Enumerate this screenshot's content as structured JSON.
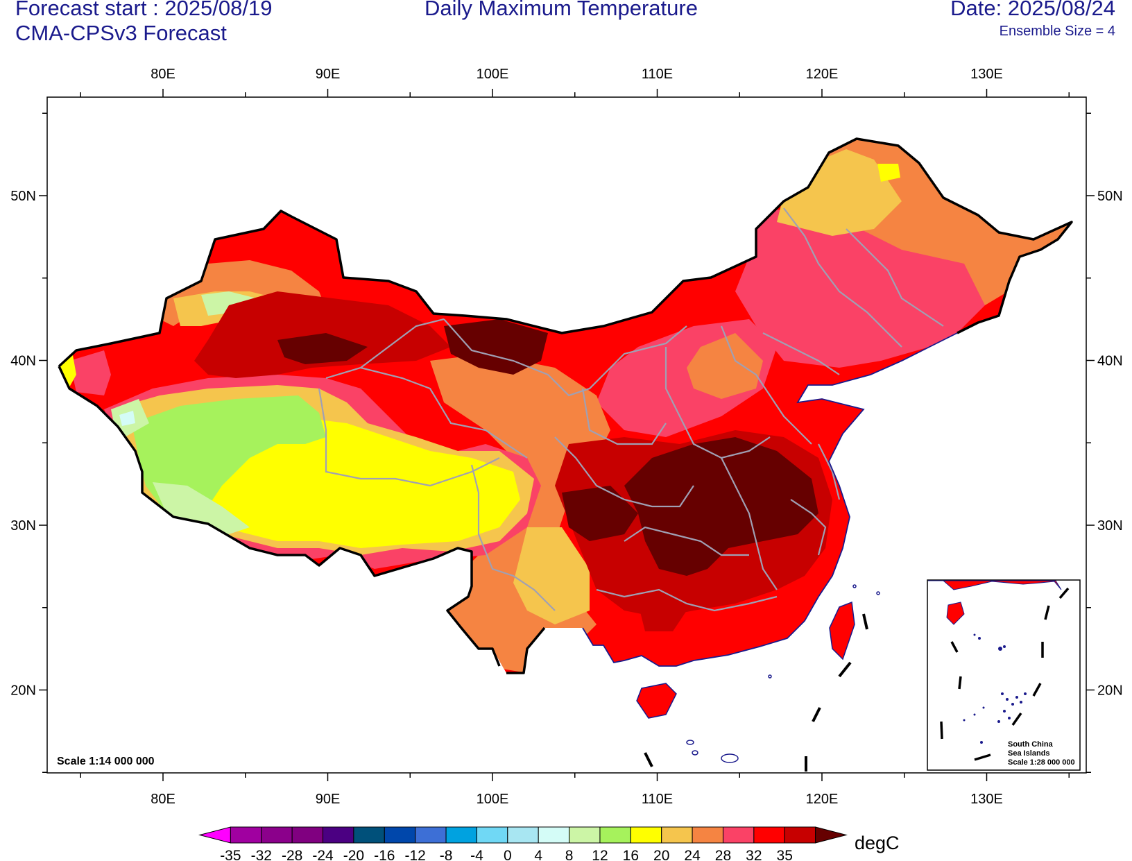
{
  "header": {
    "forecast_start": "Forecast start : 2025/08/19",
    "model": "CMA-CPSv3 Forecast",
    "title": "Daily Maximum Temperature",
    "date": "Date: 2025/08/24",
    "ensemble": "Ensemble Size = 4"
  },
  "map": {
    "lon_labels": [
      "80E",
      "90E",
      "100E",
      "110E",
      "120E",
      "130E"
    ],
    "lat_labels": [
      "50N",
      "40N",
      "30N",
      "20N"
    ],
    "scale": "Scale 1:14 000 000",
    "inset_lines": [
      "South China",
      "Sea Islands",
      "Scale 1:28 000 000"
    ]
  },
  "colorbar": {
    "unit": "degC",
    "ticks": [
      "-35",
      "-32",
      "-28",
      "-24",
      "-20",
      "-16",
      "-12",
      "-8",
      "-4",
      "0",
      "4",
      "8",
      "12",
      "16",
      "20",
      "24",
      "28",
      "32",
      "35"
    ],
    "colors": [
      "#ff00ff",
      "#a000a0",
      "#8b008b",
      "#800080",
      "#4b0082",
      "#00507a",
      "#0047ab",
      "#3d6fd6",
      "#00a2e0",
      "#70d8f5",
      "#a8e6f2",
      "#d4fcf7",
      "#ccf5a6",
      "#a6f25c",
      "#ffff00",
      "#f5c54d",
      "#f58442",
      "#fa4266",
      "#ff0000",
      "#c70000",
      "#660000"
    ]
  },
  "colors": {
    "text": "#1a1a8c",
    "border": "#000000",
    "provinces": "#a0a0b4",
    "coast": "#1a1a8c"
  }
}
